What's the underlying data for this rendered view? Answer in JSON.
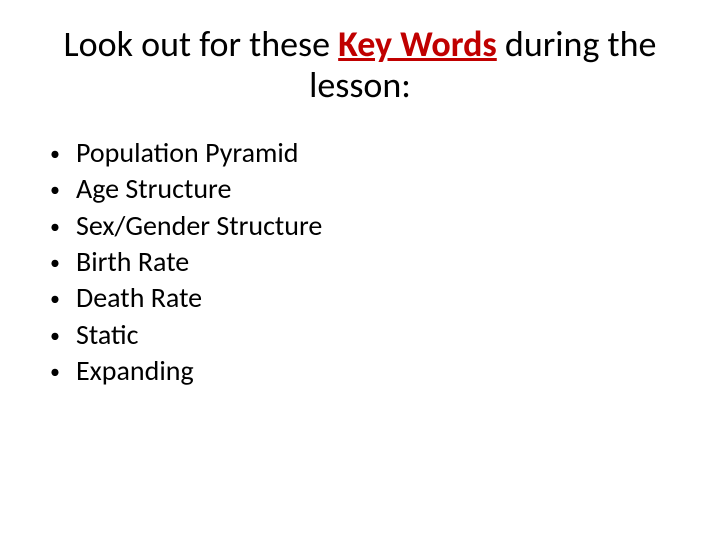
{
  "title": {
    "pre": "Look out for these ",
    "key": "Key Words",
    "post": " during the lesson:",
    "key_color": "#c00000",
    "fontsize": 36
  },
  "bullets": {
    "items": [
      "Population Pyramid",
      "Age Structure",
      "Sex/Gender Structure",
      "Birth Rate",
      "Death Rate",
      "Static",
      "Expanding"
    ],
    "bullet_char": "•",
    "fontsize": 28,
    "text_color": "#000000"
  },
  "background_color": "#ffffff"
}
